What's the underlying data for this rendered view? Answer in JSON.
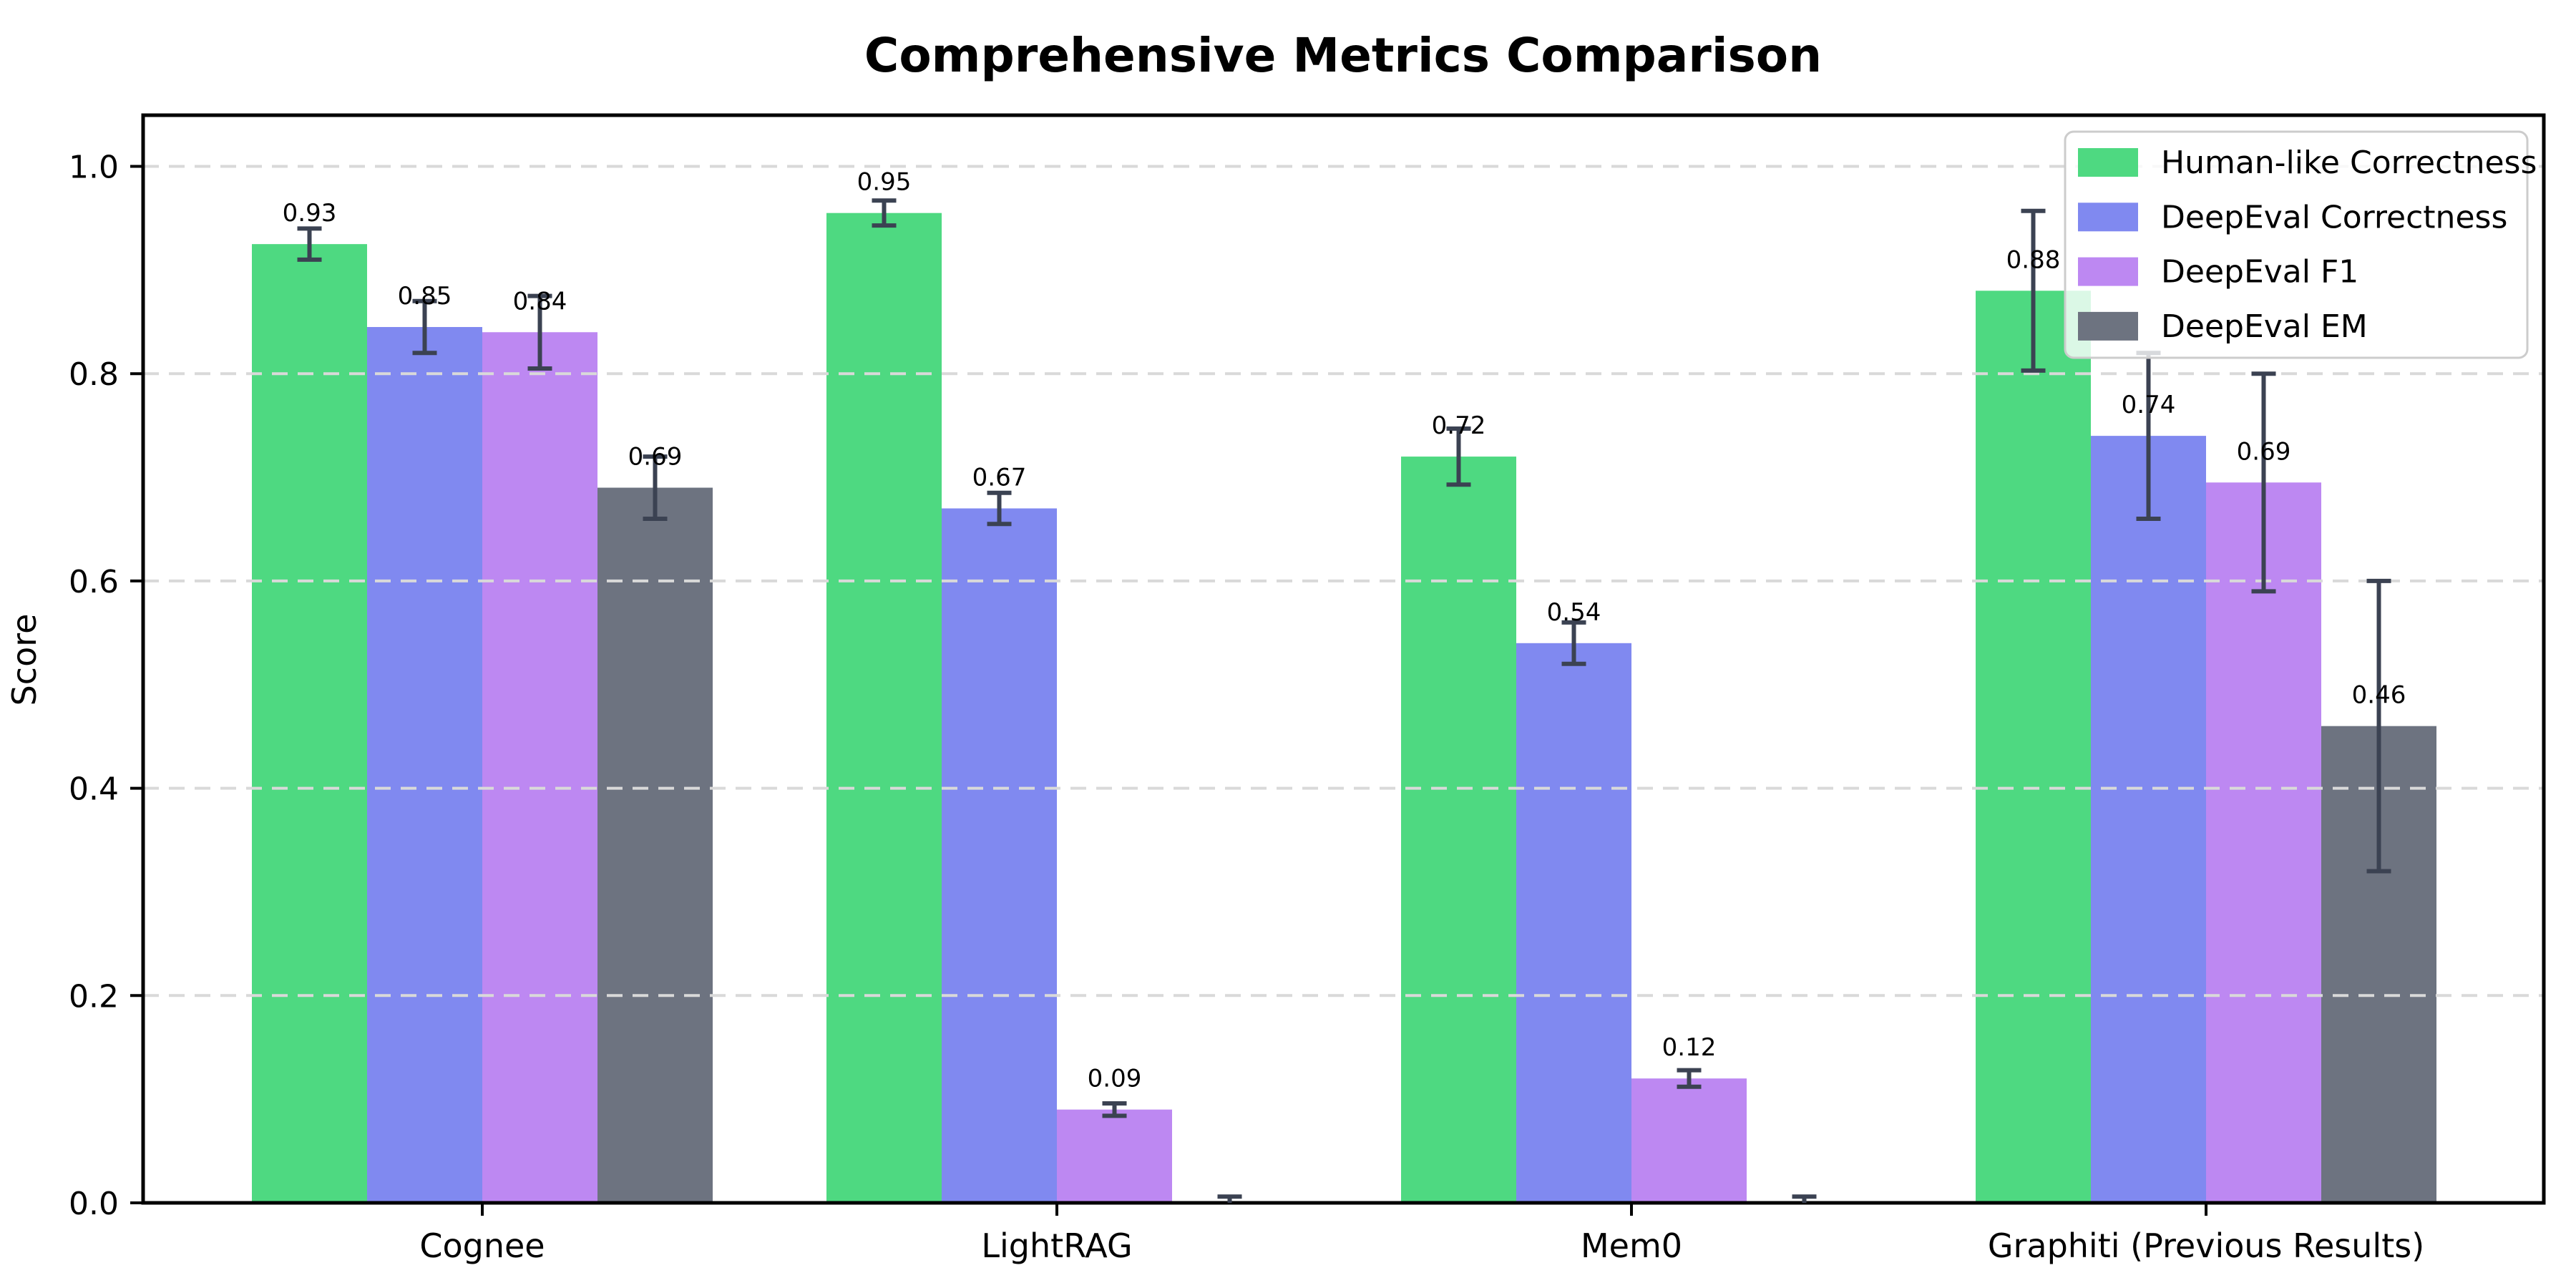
{
  "chart_data": {
    "type": "bar",
    "title": "Comprehensive Metrics Comparison",
    "ylabel": "Score",
    "xlabel": "",
    "categories": [
      "Cognee",
      "LightRAG",
      "Mem0",
      "Graphiti (Previous Results)"
    ],
    "series": [
      {
        "name": "Human-like Correctness",
        "color": "#4ed981",
        "values": [
          0.925,
          0.955,
          0.72,
          0.88
        ],
        "errors": [
          0.015,
          0.012,
          0.027,
          0.077
        ],
        "labels": [
          "0.93",
          "0.95",
          "0.72",
          "0.88"
        ]
      },
      {
        "name": "DeepEval Correctness",
        "color": "#8089f0",
        "values": [
          0.845,
          0.67,
          0.54,
          0.74
        ],
        "errors": [
          0.025,
          0.015,
          0.02,
          0.08
        ],
        "labels": [
          "0.85",
          "0.67",
          "0.54",
          "0.74"
        ]
      },
      {
        "name": "DeepEval F1",
        "color": "#bd88f2",
        "values": [
          0.84,
          0.09,
          0.12,
          0.695
        ],
        "errors": [
          0.035,
          0.006,
          0.008,
          0.105
        ],
        "labels": [
          "0.84",
          "0.09",
          "0.12",
          "0.69"
        ]
      },
      {
        "name": "DeepEval EM",
        "color": "#6d7380",
        "values": [
          0.69,
          0.0,
          0.0,
          0.46
        ],
        "errors": [
          0.03,
          0.006,
          0.006,
          0.14
        ],
        "labels": [
          "0.69",
          null,
          null,
          "0.46"
        ]
      }
    ],
    "yticks": [
      0.0,
      0.2,
      0.4,
      0.6,
      0.8,
      1.0
    ],
    "ytick_labels": [
      "0.0",
      "0.2",
      "0.4",
      "0.6",
      "0.8",
      "1.0"
    ],
    "ylim": [
      0,
      1.05
    ],
    "grid": "dashed-horizontal",
    "legend_position": "upper-right",
    "colors": {
      "error_bar": "#3b4252",
      "grid_line": "#d9d9d9",
      "axis": "#000000",
      "background": "#ffffff",
      "legend_border": "#cccccc"
    }
  }
}
